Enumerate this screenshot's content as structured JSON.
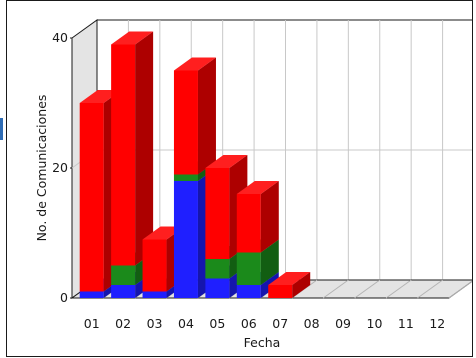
{
  "chart_data": {
    "type": "bar",
    "stacked": true,
    "three_d": true,
    "xlabel": "Fecha",
    "ylabel": "No. de Comunicaciones",
    "categories": [
      "01",
      "02",
      "03",
      "04",
      "05",
      "06",
      "07",
      "08",
      "09",
      "10",
      "11",
      "12"
    ],
    "ylim": [
      0,
      40
    ],
    "yticks": [
      0,
      20,
      40
    ],
    "grid": true,
    "legend": "none",
    "series": [
      {
        "color": "#1f1fff",
        "values": [
          1,
          2,
          1,
          18,
          3,
          2,
          0,
          0,
          0,
          0,
          0,
          0
        ]
      },
      {
        "color": "#1b8a1b",
        "values": [
          0,
          3,
          0,
          1,
          3,
          5,
          0,
          0,
          0,
          0,
          0,
          0
        ]
      },
      {
        "color": "#ff0000",
        "values": [
          29,
          34,
          8,
          16,
          14,
          9,
          2,
          0,
          0,
          0,
          0,
          0
        ]
      }
    ]
  }
}
